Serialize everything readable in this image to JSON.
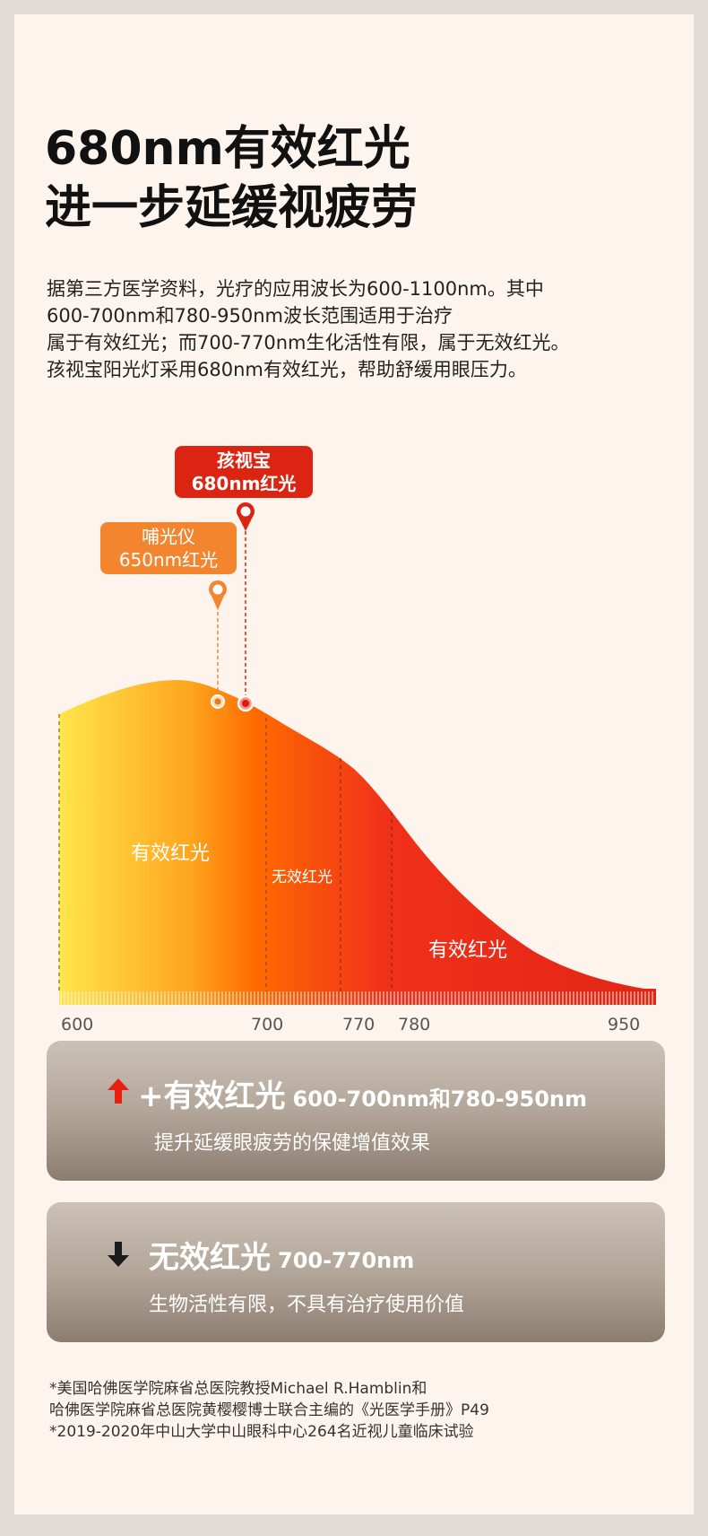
{
  "title": {
    "line1": "680nm有效红光",
    "line2": "进一步延缓视疲劳"
  },
  "intro": {
    "line1": "据第三方医学资料，光疗的应用波长为600-1100nm。其中",
    "line2": "600-700nm和780-950nm波长范围适用于治疗",
    "line3": "属于有效红光；而700-770nm生化活性有限，属于无效红光。",
    "line4": "孩视宝阳光灯采用680nm有效红光，帮助舒缓用眼压力。"
  },
  "markers": {
    "product": {
      "line1": "孩视宝",
      "line2": "680nm红光",
      "wavelength": 680,
      "color": "#dc2412"
    },
    "competitor": {
      "line1": "哺光仪",
      "line2": "650nm红光",
      "wavelength": 650,
      "color": "#f4852f"
    }
  },
  "chart_data": {
    "type": "area",
    "x_range": [
      600,
      950
    ],
    "tick_labels": [
      "600",
      "700",
      "770",
      "780",
      "950"
    ],
    "region_labels": {
      "effective_left": "有效红光",
      "ineffective": "无效红光",
      "effective_right": "有效红光"
    },
    "regions": [
      {
        "from": 600,
        "to": 700,
        "kind": "effective"
      },
      {
        "from": 700,
        "to": 770,
        "kind": "ineffective"
      },
      {
        "from": 780,
        "to": 950,
        "kind": "effective"
      }
    ],
    "gradient_colors": [
      "#ffe54a",
      "#ffa51f",
      "#ff6a00",
      "#f0301a",
      "#e22515"
    ]
  },
  "panels": {
    "effective": {
      "heading": "+有效红光",
      "range": "600-700nm和780-950nm",
      "description": "提升延缓眼疲劳的保健增值效果",
      "icon": "arrow-up-icon",
      "icon_color": "#e8200f"
    },
    "ineffective": {
      "heading": "无效红光",
      "range": "700-770nm",
      "description": "生物活性有限，不具有治疗使用价值",
      "icon": "arrow-down-icon",
      "icon_color": "#1a1a1a"
    }
  },
  "footnotes": {
    "line1": "*美国哈佛医学院麻省总医院教授Michael R.Hamblin和",
    "line2": "哈佛医学院麻省总医院黄樱樱博士联合主编的《光医学手册》P49",
    "line3": "*2019-2020年中山大学中山眼科中心264名近视儿童临床试验"
  }
}
